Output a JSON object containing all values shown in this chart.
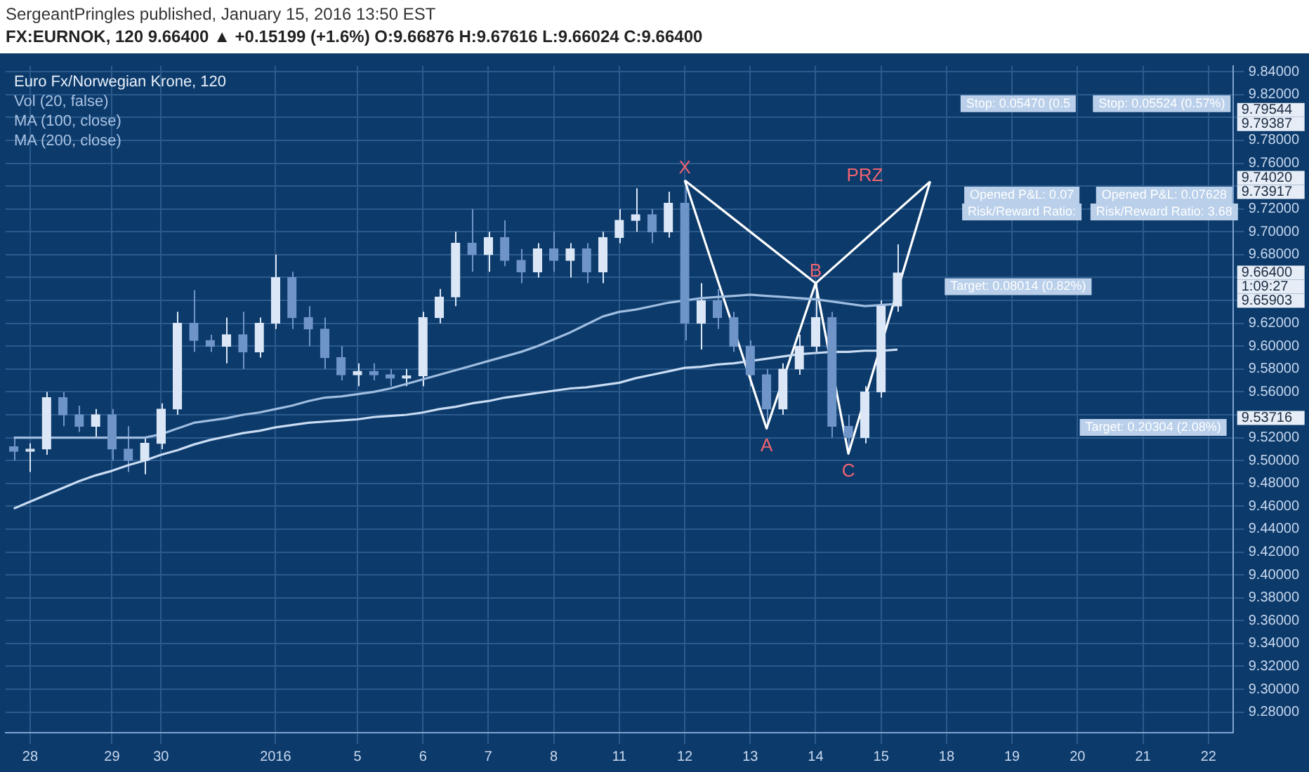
{
  "chart_data": {
    "type": "candlestick",
    "title": "FX:EURNOK, 120  9.66400 ▲ +0.15199 (+1.6%) O:9.66876 H:9.67616 L:9.66024 C:9.66400",
    "subtitle": "SergeantPringles published, January 15, 2016 13:50 EST",
    "colors": [
      "#6f95c8",
      "#dbe7f6",
      "#dbe7f6",
      "#6f95c8",
      "#6f95c8",
      "#dbe7f6",
      "#6f95c8",
      "#6f95c8",
      "#dbe7f6",
      "#dbe7f6",
      "#dbe7f6",
      "#6f95c8",
      "#6f95c8",
      "#dbe7f6",
      "#6f95c8",
      "#dbe7f6",
      "#dbe7f6",
      "#6f95c8",
      "#6f95c8",
      "#6f95c8",
      "#6f95c8",
      "#dbe7f6",
      "#6f95c8",
      "#6f95c8",
      "#dbe7f6",
      "#dbe7f6",
      "#dbe7f6",
      "#dbe7f6",
      "#6f95c8",
      "#dbe7f6",
      "#6f95c8",
      "#6f95c8",
      "#dbe7f6",
      "#6f95c8",
      "#dbe7f6",
      "#6f95c8",
      "#dbe7f6",
      "#dbe7f6",
      "#dbe7f6",
      "#6f95c8",
      "#dbe7f6",
      "#6f95c8",
      "#dbe7f6",
      "#6f95c8",
      "#6f95c8",
      "#6f95c8",
      "#6f95c8",
      "#dbe7f6",
      "#dbe7f6",
      "#dbe7f6",
      "#6f95c8",
      "#6f95c8",
      "#dbe7f6",
      "#dbe7f6",
      "#dbe7f6",
      null,
      null,
      null,
      null,
      null,
      null,
      null,
      null,
      null,
      null,
      null,
      null,
      null,
      null,
      null,
      null,
      null,
      null,
      null,
      null
    ],
    "categories": [
      null,
      "28",
      null,
      null,
      null,
      null,
      "29",
      null,
      null,
      "30",
      null,
      null,
      null,
      null,
      null,
      null,
      "2016",
      null,
      null,
      null,
      null,
      "5",
      null,
      null,
      null,
      "6",
      null,
      null,
      null,
      "7",
      null,
      null,
      null,
      "8",
      null,
      null,
      null,
      "11",
      null,
      null,
      null,
      "12",
      null,
      null,
      null,
      "13",
      null,
      null,
      null,
      "14",
      null,
      null,
      null,
      "15",
      null,
      null,
      null,
      "18",
      null,
      null,
      null,
      "19",
      null,
      null,
      null,
      "20",
      null,
      null,
      null,
      "21",
      null,
      null,
      null,
      "22",
      null
    ],
    "ohlc": [
      [
        9.512,
        9.52,
        9.5,
        9.508
      ],
      [
        9.508,
        9.515,
        9.49,
        9.51
      ],
      [
        9.51,
        9.56,
        9.505,
        9.555
      ],
      [
        9.555,
        9.56,
        9.53,
        9.54
      ],
      [
        9.54,
        9.548,
        9.525,
        9.53
      ],
      [
        9.53,
        9.545,
        9.52,
        9.54
      ],
      [
        9.54,
        9.545,
        9.5,
        9.51
      ],
      [
        9.51,
        9.53,
        9.49,
        9.5
      ],
      [
        9.5,
        9.52,
        9.488,
        9.515
      ],
      [
        9.515,
        9.55,
        9.51,
        9.545
      ],
      [
        9.545,
        9.63,
        9.54,
        9.62
      ],
      [
        9.62,
        9.649,
        9.595,
        9.605
      ],
      [
        9.605,
        9.61,
        9.595,
        9.6
      ],
      [
        9.6,
        9.625,
        9.585,
        9.61
      ],
      [
        9.61,
        9.63,
        9.58,
        9.595
      ],
      [
        9.595,
        9.625,
        9.59,
        9.62
      ],
      [
        9.62,
        9.68,
        9.615,
        9.66
      ],
      [
        9.66,
        9.665,
        9.615,
        9.625
      ],
      [
        9.625,
        9.635,
        9.6,
        9.615
      ],
      [
        9.615,
        9.625,
        9.58,
        9.59
      ],
      [
        9.59,
        9.6,
        9.57,
        9.575
      ],
      [
        9.575,
        9.585,
        9.565,
        9.578
      ],
      [
        9.578,
        9.585,
        9.57,
        9.575
      ],
      [
        9.575,
        9.58,
        9.565,
        9.572
      ],
      [
        9.572,
        9.58,
        9.565,
        9.574
      ],
      [
        9.574,
        9.63,
        9.565,
        9.625
      ],
      [
        9.625,
        9.65,
        9.62,
        9.643
      ],
      [
        9.643,
        9.7,
        9.635,
        9.69
      ],
      [
        9.69,
        9.72,
        9.665,
        9.68
      ],
      [
        9.68,
        9.7,
        9.665,
        9.695
      ],
      [
        9.695,
        9.71,
        9.67,
        9.675
      ],
      [
        9.675,
        9.685,
        9.655,
        9.665
      ],
      [
        9.665,
        9.69,
        9.66,
        9.685
      ],
      [
        9.685,
        9.7,
        9.665,
        9.675
      ],
      [
        9.675,
        9.69,
        9.66,
        9.685
      ],
      [
        9.685,
        9.69,
        9.655,
        9.665
      ],
      [
        9.665,
        9.7,
        9.655,
        9.695
      ],
      [
        9.695,
        9.72,
        9.69,
        9.71
      ],
      [
        9.71,
        9.738,
        9.7,
        9.715
      ],
      [
        9.715,
        9.72,
        9.69,
        9.7
      ],
      [
        9.7,
        9.735,
        9.695,
        9.725
      ],
      [
        9.725,
        9.743,
        9.605,
        9.62
      ],
      [
        9.62,
        9.655,
        9.597,
        9.64
      ],
      [
        9.64,
        9.65,
        9.615,
        9.625
      ],
      [
        9.625,
        9.63,
        9.595,
        9.6
      ],
      [
        9.6,
        9.605,
        9.565,
        9.575
      ],
      [
        9.575,
        9.58,
        9.528,
        9.545
      ],
      [
        9.545,
        9.585,
        9.54,
        9.58
      ],
      [
        9.58,
        9.61,
        9.575,
        9.6
      ],
      [
        9.6,
        9.655,
        9.595,
        9.625
      ],
      [
        9.625,
        9.63,
        9.52,
        9.53
      ],
      [
        9.53,
        9.54,
        9.506,
        9.52
      ],
      [
        9.52,
        9.565,
        9.515,
        9.56
      ],
      [
        9.56,
        9.64,
        9.555,
        9.635
      ],
      [
        9.635,
        9.689,
        9.63,
        9.664
      ],
      null,
      null,
      null,
      null,
      null,
      null,
      null,
      null,
      null,
      null,
      null,
      null,
      null,
      null,
      null,
      null,
      null,
      null,
      null,
      null
    ],
    "series": [
      {
        "type": "line",
        "color": "#9fbde0",
        "values": [
          9.52,
          9.52,
          9.52,
          9.52,
          9.52,
          9.52,
          9.52,
          9.52,
          9.52,
          9.523,
          9.528,
          9.533,
          9.535,
          9.537,
          9.54,
          9.542,
          9.545,
          9.548,
          9.552,
          9.555,
          9.556,
          9.558,
          9.56,
          9.563,
          9.567,
          9.571,
          9.575,
          9.579,
          9.583,
          9.587,
          9.591,
          9.595,
          9.6,
          9.606,
          9.612,
          9.619,
          9.626,
          9.63,
          9.632,
          9.635,
          9.638,
          9.64,
          9.642,
          9.643,
          9.644,
          9.645,
          9.644,
          9.643,
          9.642,
          9.641,
          9.639,
          9.637,
          9.635,
          9.636,
          9.637,
          null,
          null,
          null,
          null,
          null,
          null,
          null,
          null,
          null,
          null,
          null,
          null,
          null,
          null,
          null,
          null,
          null,
          null,
          null,
          null
        ]
      },
      {
        "type": "line",
        "color": "#c9dcf3",
        "values": [
          9.458,
          9.464,
          9.47,
          9.476,
          9.482,
          9.487,
          9.491,
          9.496,
          9.5,
          9.505,
          9.509,
          9.514,
          9.518,
          9.521,
          9.524,
          9.526,
          9.529,
          9.531,
          9.533,
          9.534,
          9.535,
          9.536,
          9.538,
          9.539,
          9.54,
          9.542,
          9.545,
          9.547,
          9.55,
          9.552,
          9.555,
          9.557,
          9.559,
          9.561,
          9.563,
          9.564,
          9.566,
          9.568,
          9.572,
          9.575,
          9.578,
          9.581,
          9.582,
          9.584,
          9.585,
          9.587,
          9.589,
          9.591,
          9.593,
          9.594,
          9.595,
          9.595,
          9.596,
          9.596,
          9.597,
          null,
          null,
          null,
          null,
          null,
          null,
          null,
          null,
          null,
          null,
          null,
          null,
          null,
          null,
          null,
          null,
          null,
          null,
          null,
          null
        ]
      },
      {
        "type": "line",
        "color": "#ffffff",
        "values": [
          null,
          null,
          null,
          null,
          null,
          null,
          null,
          null,
          null,
          null,
          null,
          null,
          null,
          null,
          null,
          null,
          null,
          null,
          null,
          null,
          null,
          null,
          null,
          null,
          null,
          null,
          null,
          null,
          null,
          null,
          null,
          null,
          null,
          null,
          null,
          null,
          null,
          null,
          null,
          null,
          null,
          9.745,
          null,
          null,
          null,
          null,
          9.528,
          null,
          null,
          9.655,
          null,
          9.506,
          null,
          null,
          null,
          null,
          9.744,
          null,
          null,
          null,
          null,
          null,
          null,
          null,
          null,
          null,
          null,
          null,
          null,
          null,
          null,
          null,
          null,
          null,
          null
        ],
        "value_labels": [
          null,
          null,
          null,
          null,
          null,
          null,
          null,
          null,
          null,
          null,
          null,
          null,
          null,
          null,
          null,
          null,
          null,
          null,
          null,
          null,
          null,
          null,
          null,
          null,
          null,
          null,
          null,
          null,
          null,
          null,
          null,
          null,
          null,
          null,
          null,
          null,
          null,
          null,
          null,
          null,
          null,
          "X",
          null,
          null,
          null,
          null,
          "A",
          null,
          null,
          "B",
          null,
          "C",
          null,
          null,
          null,
          null,
          null,
          null,
          null,
          null,
          null,
          null,
          null,
          null,
          null,
          null,
          null,
          null,
          null,
          null,
          null,
          null,
          null,
          null,
          null
        ]
      }
    ],
    "ylim": [
      9.262,
      9.845
    ],
    "yticks": [
      {
        "value": 9.28,
        "label": "9.28000"
      },
      {
        "value": 9.3,
        "label": "9.30000"
      },
      {
        "value": 9.32,
        "label": "9.32000"
      },
      {
        "value": 9.34,
        "label": "9.34000"
      },
      {
        "value": 9.36,
        "label": "9.36000"
      },
      {
        "value": 9.38,
        "label": "9.38000"
      },
      {
        "value": 9.4,
        "label": "9.40000"
      },
      {
        "value": 9.42,
        "label": "9.42000"
      },
      {
        "value": 9.44,
        "label": "9.44000"
      },
      {
        "value": 9.46,
        "label": "9.46000"
      },
      {
        "value": 9.48,
        "label": "9.48000"
      },
      {
        "value": 9.5,
        "label": "9.50000"
      },
      {
        "value": 9.52,
        "label": "9.52000"
      },
      {
        "value": 9.54,
        "label": null
      },
      {
        "value": 9.56,
        "label": "9.56000"
      },
      {
        "value": 9.58,
        "label": "9.58000"
      },
      {
        "value": 9.6,
        "label": "9.60000"
      },
      {
        "value": 9.62,
        "label": "9.62000"
      },
      {
        "value": 9.64,
        "label": null
      },
      {
        "value": 9.66,
        "label": null
      },
      {
        "value": 9.68,
        "label": "9.68000"
      },
      {
        "value": 9.7,
        "label": "9.70000"
      },
      {
        "value": 9.72,
        "label": "9.72000"
      },
      {
        "value": 9.74,
        "label": null
      },
      {
        "value": 9.76,
        "label": "9.76000"
      },
      {
        "value": 9.78,
        "label": "9.78000"
      },
      {
        "value": 9.8,
        "label": null
      },
      {
        "value": 9.82,
        "label": "9.82000"
      },
      {
        "value": 9.84,
        "label": "9.84000"
      }
    ],
    "grid": true,
    "marker": "none",
    "annotations": [
      "Euro Fx/Norwegian Krone, 120",
      "Vol (20, false)",
      "MA (100, close)",
      "MA (200, close)",
      "PRZ",
      "Stop: 0.05470 (0.5",
      "Stop: 0.05524 (0.57%)",
      "Opened P&L: 0.07",
      "Risk/Reward Ratio:",
      "Opened P&L: 0.07628",
      "Risk/Reward Ratio: 3.68",
      "Target: 0.08014 (0.82%)",
      "Target: 0.20304 (2.08%)",
      "9.79544",
      "9.79387",
      "9.74020",
      "9.73917",
      "9.66400",
      "1:09:27",
      "9.65903",
      "9.53716"
    ]
  }
}
